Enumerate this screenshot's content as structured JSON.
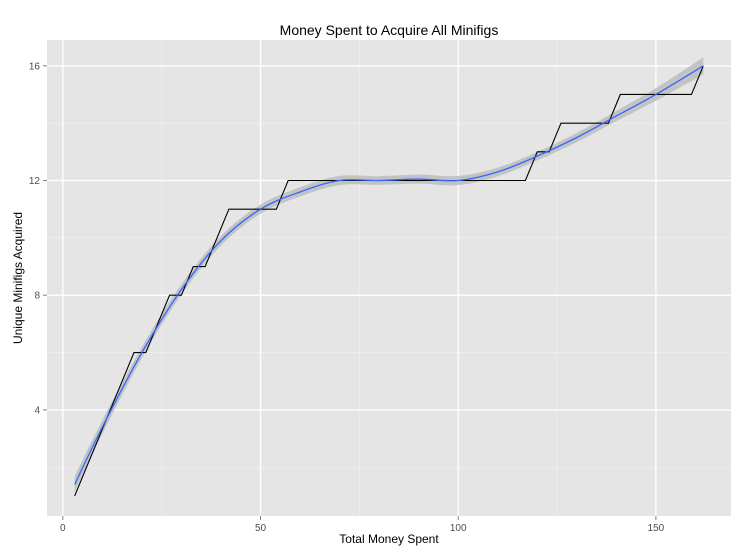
{
  "chart_data": {
    "type": "line",
    "title": "Money Spent to Acquire All Minifigs",
    "xlabel": "Total Money Spent",
    "ylabel": "Unique Minifigs Acquired",
    "xlim": [
      -4,
      169
    ],
    "ylim": [
      0.3,
      16.9
    ],
    "xticks": [
      0,
      50,
      100,
      150
    ],
    "yticks": [
      4,
      8,
      12,
      16
    ],
    "xtick_labels": [
      "0",
      "50",
      "100",
      "150"
    ],
    "ytick_labels": [
      "4",
      "8",
      "12",
      "16"
    ],
    "grid": true,
    "colors": {
      "panel": "#e5e5e5",
      "grid_major": "#ffffff",
      "grid_minor": "#f2f2f2",
      "step_line": "#000000",
      "smooth_line": "#3366ff",
      "confidence_band": "#bdbdbd"
    },
    "series": [
      {
        "kind": "step",
        "x": [
          3,
          18,
          21,
          27,
          30,
          33,
          36,
          42,
          54,
          57,
          117,
          120,
          123,
          126,
          138,
          141,
          159,
          162
        ],
        "y": [
          1,
          6,
          6,
          8,
          8,
          9,
          9,
          11,
          11,
          12,
          12,
          13,
          13,
          14,
          14,
          15,
          15,
          16
        ]
      },
      {
        "kind": "smooth",
        "x": [
          3,
          10,
          20,
          30,
          40,
          50,
          60,
          70,
          80,
          90,
          100,
          110,
          120,
          130,
          140,
          150,
          162
        ],
        "y": [
          1.4,
          3.4,
          6.0,
          8.2,
          9.9,
          11.0,
          11.6,
          12.0,
          12.0,
          12.05,
          12.0,
          12.3,
          12.85,
          13.5,
          14.25,
          15.0,
          16.0
        ],
        "se": [
          0.28,
          0.24,
          0.2,
          0.18,
          0.17,
          0.16,
          0.16,
          0.16,
          0.15,
          0.16,
          0.16,
          0.15,
          0.15,
          0.16,
          0.18,
          0.22,
          0.3
        ]
      }
    ]
  }
}
